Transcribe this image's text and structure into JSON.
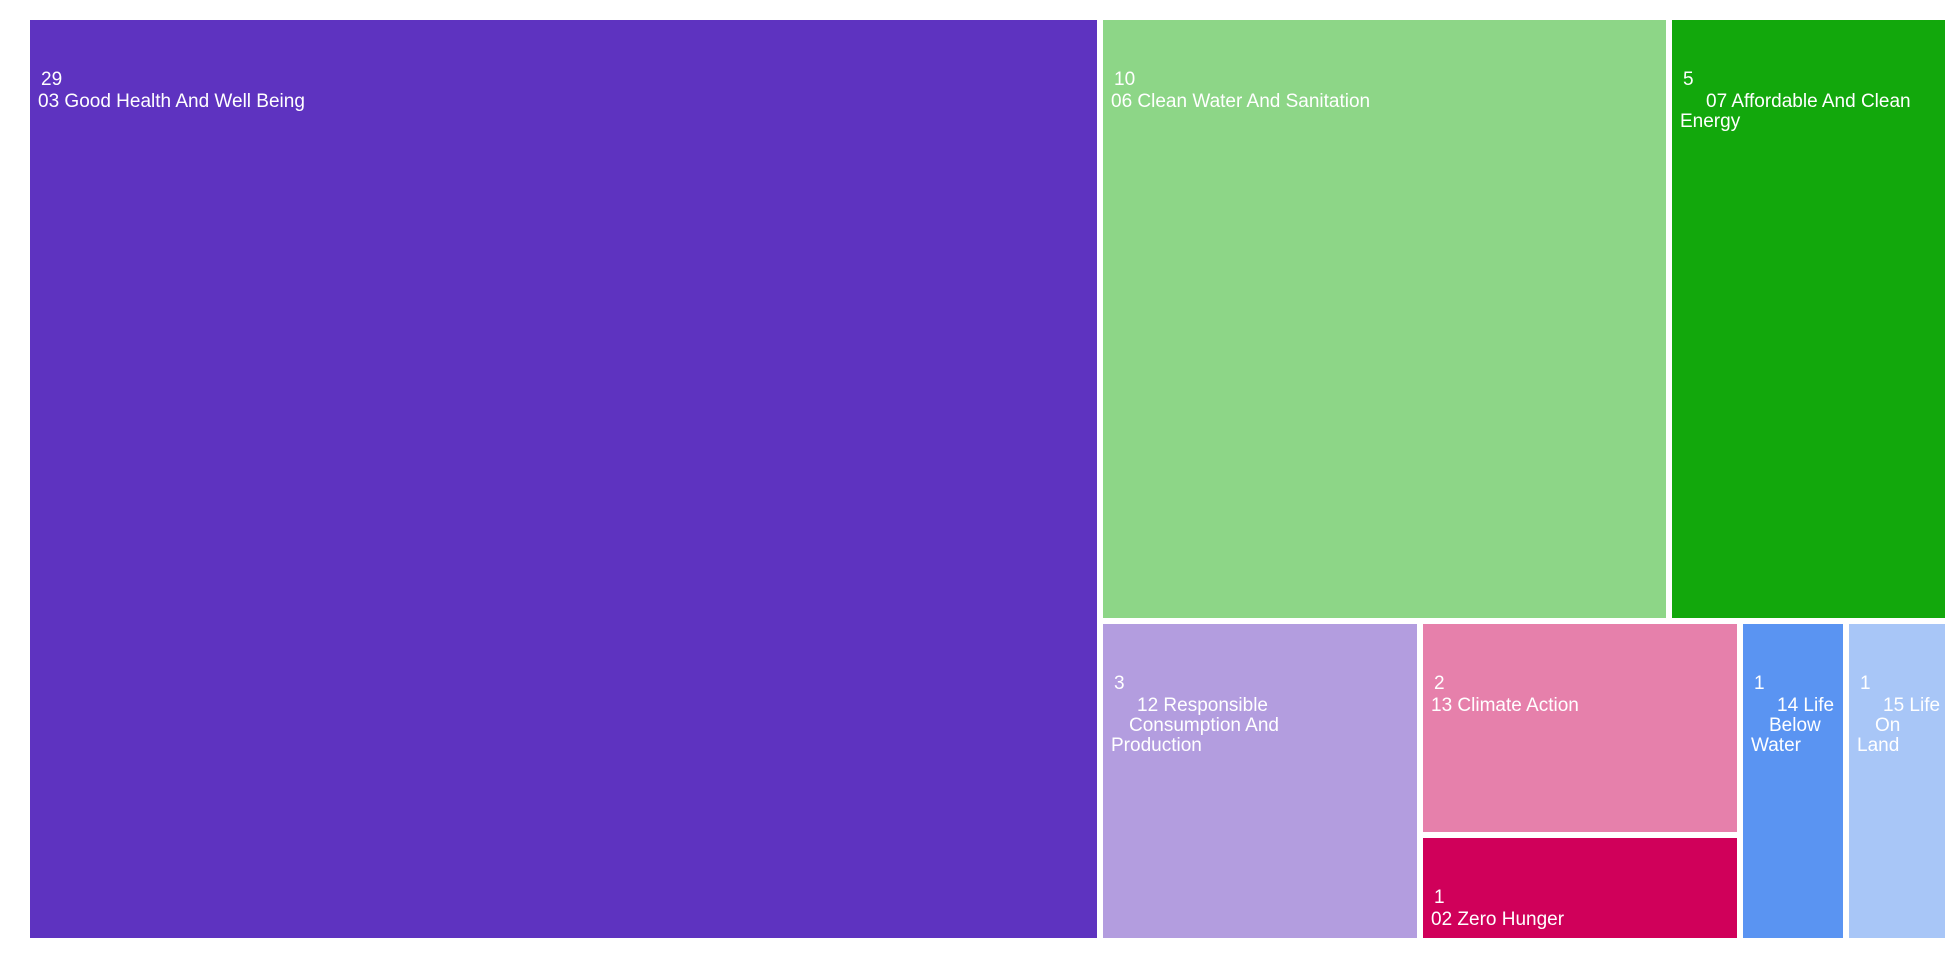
{
  "chart_data": {
    "type": "treemap",
    "title": "",
    "items": [
      {
        "label": "03 Good Health And Well Being",
        "value": 29,
        "value_label": "29",
        "label_lines": [
          "03 Good Health And Well Being"
        ],
        "color": "#5e33c0"
      },
      {
        "label": "06 Clean Water And Sanitation",
        "value": 10,
        "value_label": "10",
        "label_lines": [
          "06 Clean Water And Sanitation"
        ],
        "color": "#8dd687"
      },
      {
        "label": "07 Affordable And Clean Energy",
        "value": 5,
        "value_label": "5",
        "label_lines": [
          "07 Affordable And Clean",
          "Energy"
        ],
        "color": "#12a80c"
      },
      {
        "label": "12 Responsible Consumption And Production",
        "value": 3,
        "value_label": "3",
        "label_lines": [
          "12 Responsible",
          "Consumption And",
          "Production"
        ],
        "color": "#b39ddf"
      },
      {
        "label": "13 Climate Action",
        "value": 2,
        "value_label": "2",
        "label_lines": [
          "13 Climate Action"
        ],
        "color": "#e680ab"
      },
      {
        "label": "02 Zero Hunger",
        "value": 1,
        "value_label": "1",
        "label_lines": [
          "02 Zero Hunger"
        ],
        "color": "#d0005a"
      },
      {
        "label": "14 Life Below Water",
        "value": 1,
        "value_label": "1",
        "label_lines": [
          "14 Life",
          "Below",
          "Water"
        ],
        "color": "#5a94f2"
      },
      {
        "label": "15 Life On Land",
        "value": 1,
        "value_label": "1",
        "label_lines": [
          "15 Life",
          "On",
          "Land"
        ],
        "color": "#a8c6f7"
      }
    ]
  }
}
